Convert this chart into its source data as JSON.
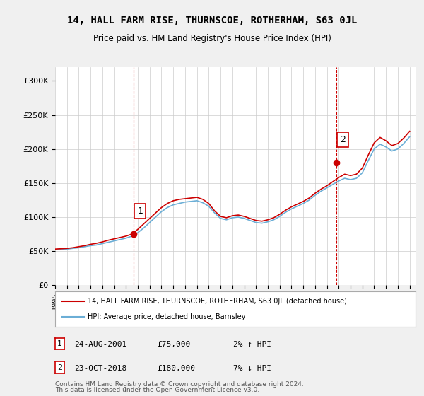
{
  "title": "14, HALL FARM RISE, THURNSCOE, ROTHERHAM, S63 0JL",
  "subtitle": "Price paid vs. HM Land Registry's House Price Index (HPI)",
  "legend_line1": "14, HALL FARM RISE, THURNSCOE, ROTHERHAM, S63 0JL (detached house)",
  "legend_line2": "HPI: Average price, detached house, Barnsley",
  "annotation1_label": "1",
  "annotation1_date": "24-AUG-2001",
  "annotation1_price": "£75,000",
  "annotation1_hpi": "2% ↑ HPI",
  "annotation2_label": "2",
  "annotation2_date": "23-OCT-2018",
  "annotation2_price": "£180,000",
  "annotation2_hpi": "7% ↓ HPI",
  "footer1": "Contains HM Land Registry data © Crown copyright and database right 2024.",
  "footer2": "This data is licensed under the Open Government Licence v3.0.",
  "sale1_year": 2001.65,
  "sale1_value": 75000,
  "sale2_year": 2018.8,
  "sale2_value": 180000,
  "hpi_color": "#6baed6",
  "sale_color": "#cc0000",
  "vline_color": "#cc0000",
  "ylim_min": 0,
  "ylim_max": 320000,
  "xlim_min": 1995,
  "xlim_max": 2025.5,
  "background_color": "#f0f0f0",
  "plot_bg_color": "#ffffff",
  "hpi_years": [
    1995,
    1995.5,
    1996,
    1996.5,
    1997,
    1997.5,
    1998,
    1998.5,
    1999,
    1999.5,
    2000,
    2000.5,
    2001,
    2001.5,
    2002,
    2002.5,
    2003,
    2003.5,
    2004,
    2004.5,
    2005,
    2005.5,
    2006,
    2006.5,
    2007,
    2007.5,
    2008,
    2008.5,
    2009,
    2009.5,
    2010,
    2010.5,
    2011,
    2011.5,
    2012,
    2012.5,
    2013,
    2013.5,
    2014,
    2014.5,
    2015,
    2015.5,
    2016,
    2016.5,
    2017,
    2017.5,
    2018,
    2018.5,
    2019,
    2019.5,
    2020,
    2020.5,
    2021,
    2021.5,
    2022,
    2022.5,
    2023,
    2023.5,
    2024,
    2024.5,
    2025
  ],
  "hpi_values": [
    52000,
    52500,
    53000,
    54000,
    55000,
    56500,
    58000,
    59000,
    61000,
    63000,
    65000,
    67000,
    69000,
    72000,
    77000,
    84000,
    92000,
    100000,
    108000,
    114000,
    118000,
    120000,
    122000,
    123000,
    124000,
    121000,
    116000,
    106000,
    98000,
    96000,
    99000,
    100000,
    98000,
    95000,
    92000,
    91000,
    93000,
    96000,
    101000,
    107000,
    112000,
    116000,
    120000,
    125000,
    132000,
    138000,
    143000,
    148000,
    153000,
    157000,
    155000,
    157000,
    165000,
    183000,
    200000,
    207000,
    203000,
    197000,
    200000,
    208000,
    218000
  ],
  "red_years": [
    1995,
    1995.5,
    1996,
    1996.5,
    1997,
    1997.5,
    1998,
    1998.5,
    1999,
    1999.5,
    2000,
    2000.5,
    2001,
    2001.5,
    2002,
    2002.5,
    2003,
    2003.5,
    2004,
    2004.5,
    2005,
    2005.5,
    2006,
    2006.5,
    2007,
    2007.5,
    2008,
    2008.5,
    2009,
    2009.5,
    2010,
    2010.5,
    2011,
    2011.5,
    2012,
    2012.5,
    2013,
    2013.5,
    2014,
    2014.5,
    2015,
    2015.5,
    2016,
    2016.5,
    2017,
    2017.5,
    2018,
    2018.5,
    2019,
    2019.5,
    2020,
    2020.5,
    2021,
    2021.5,
    2022,
    2022.5,
    2023,
    2023.5,
    2024,
    2024.5,
    2025
  ],
  "red_values": [
    53000,
    53500,
    54000,
    55000,
    56500,
    58000,
    60000,
    61500,
    63500,
    66000,
    68000,
    70000,
    72000,
    75000,
    82000,
    90000,
    98000,
    106000,
    114000,
    120000,
    124000,
    126000,
    127000,
    128000,
    129000,
    126000,
    120000,
    109000,
    101000,
    99000,
    102000,
    103000,
    101000,
    98000,
    95000,
    94000,
    96000,
    99000,
    104000,
    110000,
    115000,
    119000,
    123000,
    128000,
    135000,
    141000,
    146000,
    152000,
    158000,
    163000,
    161000,
    163000,
    172000,
    191000,
    209000,
    217000,
    212000,
    205000,
    208000,
    216000,
    226000
  ]
}
